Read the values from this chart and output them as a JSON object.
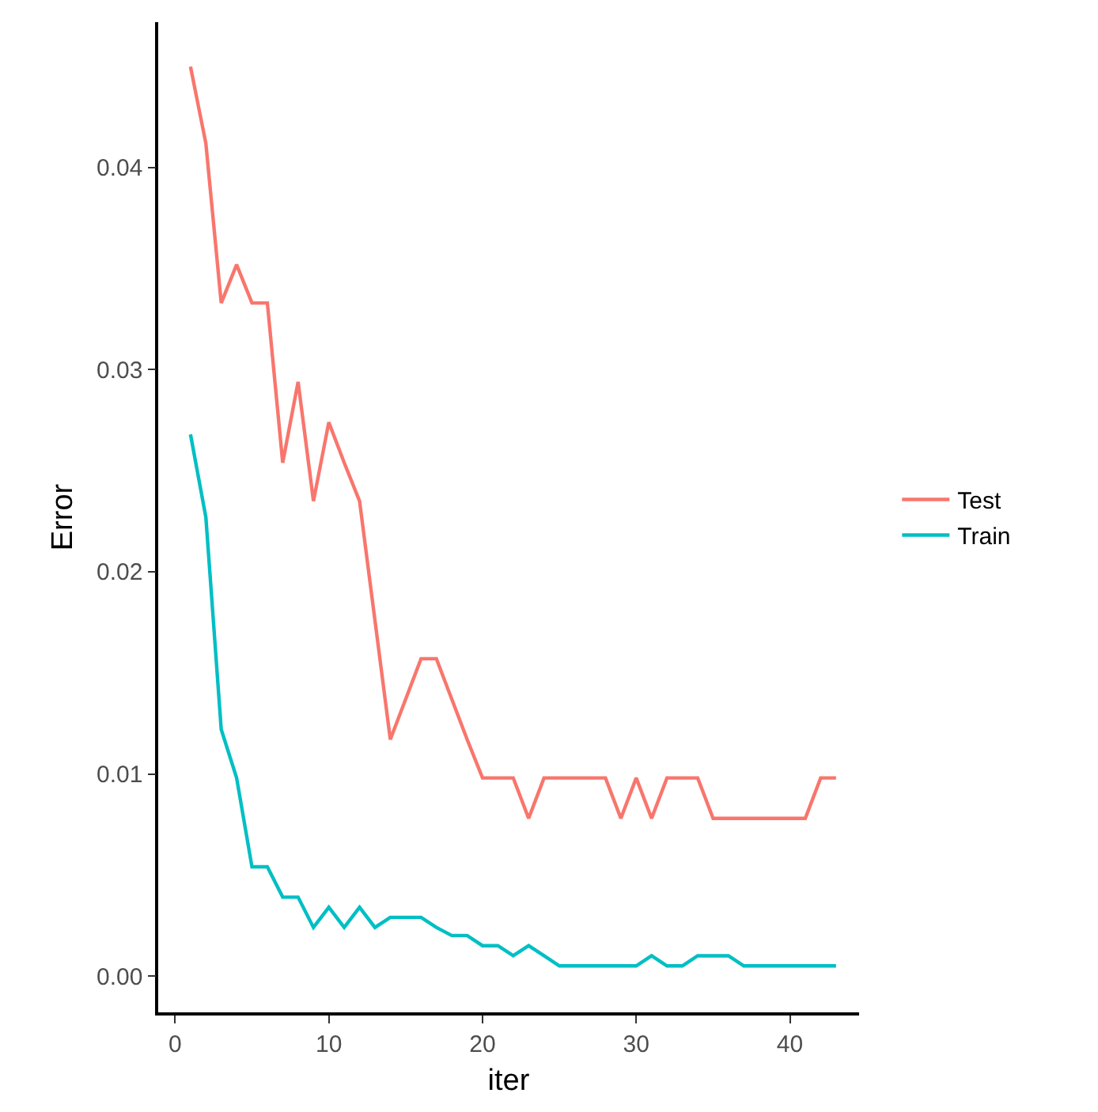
{
  "chart_data": {
    "type": "line",
    "xlabel": "iter",
    "ylabel": "Error",
    "x": [
      1,
      2,
      3,
      4,
      5,
      6,
      7,
      8,
      9,
      10,
      11,
      12,
      13,
      14,
      15,
      16,
      17,
      18,
      19,
      20,
      21,
      22,
      23,
      24,
      25,
      26,
      27,
      28,
      29,
      30,
      31,
      32,
      33,
      34,
      35,
      36,
      37,
      38,
      39,
      40,
      41,
      42,
      43
    ],
    "series": [
      {
        "name": "Test",
        "color": "#f8766d",
        "values": [
          0.045,
          0.0412,
          0.0333,
          0.0352,
          0.0333,
          0.0333,
          0.0254,
          0.0294,
          0.0235,
          0.0274,
          0.0254,
          0.0235,
          0.0176,
          0.0117,
          0.0137,
          0.0157,
          0.0157,
          0.0137,
          0.0117,
          0.0098,
          0.0098,
          0.0098,
          0.0078,
          0.0098,
          0.0098,
          0.0098,
          0.0098,
          0.0098,
          0.0078,
          0.0098,
          0.0078,
          0.0098,
          0.0098,
          0.0098,
          0.0078,
          0.0078,
          0.0078,
          0.0078,
          0.0078,
          0.0078,
          0.0078,
          0.0098,
          0.0098
        ]
      },
      {
        "name": "Train",
        "color": "#00bfc4",
        "values": [
          0.0268,
          0.0227,
          0.0122,
          0.0098,
          0.0054,
          0.0054,
          0.0039,
          0.0039,
          0.0024,
          0.0034,
          0.0024,
          0.0034,
          0.0024,
          0.0029,
          0.0029,
          0.0029,
          0.0024,
          0.002,
          0.002,
          0.0015,
          0.0015,
          0.001,
          0.0015,
          0.001,
          0.0005,
          0.0005,
          0.0005,
          0.0005,
          0.0005,
          0.0005,
          0.001,
          0.0005,
          0.0005,
          0.001,
          0.001,
          0.001,
          0.0005,
          0.0005,
          0.0005,
          0.0005,
          0.0005,
          0.0005,
          0.0005
        ]
      }
    ],
    "xlim": [
      -1.1,
      44.5
    ],
    "xticks": [
      0,
      10,
      20,
      30,
      40
    ],
    "ylim": [
      -0.0018,
      0.0472
    ],
    "yticks": [
      {
        "value": 0,
        "label": "0.00"
      },
      {
        "value": 0.01,
        "label": "0.01"
      },
      {
        "value": 0.02,
        "label": "0.02"
      },
      {
        "value": 0.03,
        "label": "0.03"
      },
      {
        "value": 0.04,
        "label": "0.04"
      }
    ],
    "grid": false,
    "legend": "right",
    "marker": "none",
    "line_style": "solid"
  }
}
